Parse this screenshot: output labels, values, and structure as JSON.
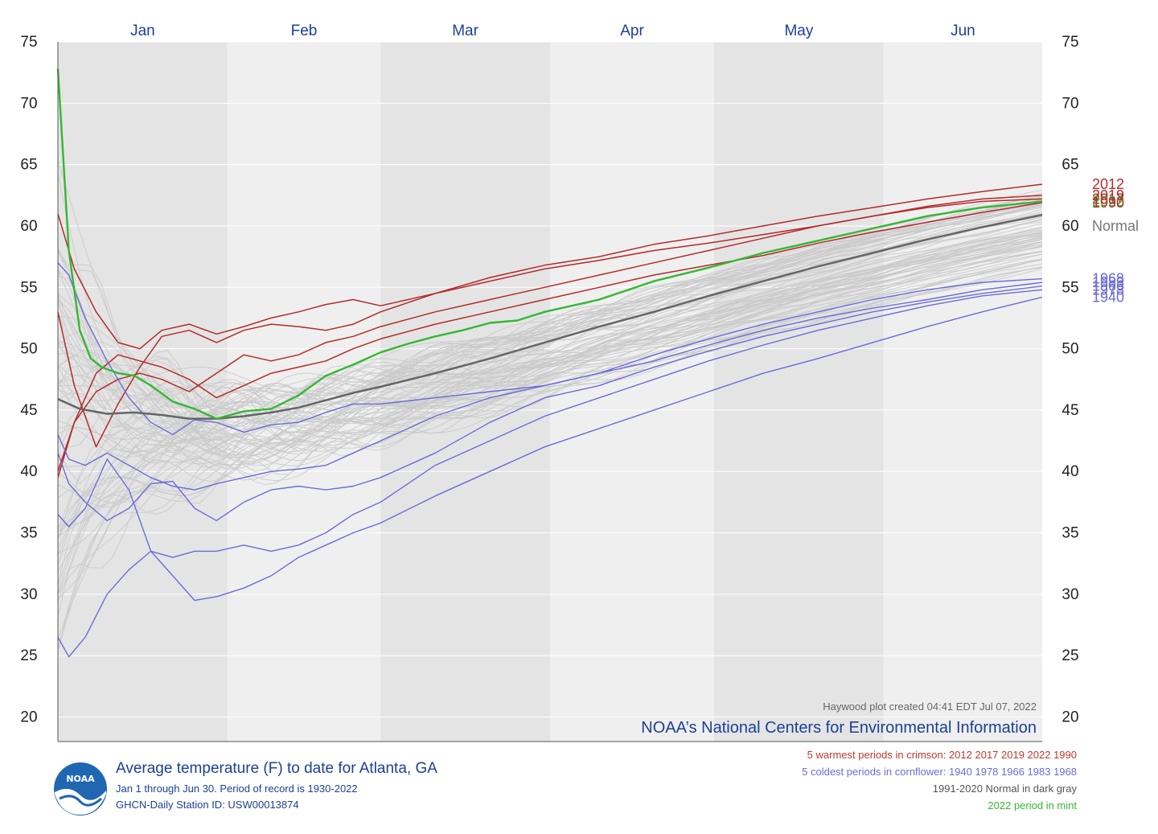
{
  "chart_data": {
    "type": "line",
    "months": [
      "Jan",
      "Feb",
      "Mar",
      "Apr",
      "May",
      "Jun"
    ],
    "x_domain_days": [
      1,
      181
    ],
    "ylim": [
      18,
      75
    ],
    "yticks": [
      20,
      25,
      30,
      35,
      40,
      45,
      50,
      55,
      60,
      65,
      70,
      75
    ],
    "grid": true,
    "credit": "Haywood plot created 04:41 EDT Jul 07, 2022",
    "source": "NOAA’s National Centers for Environmental Information",
    "title": "Average temperature (F) to date for Atlanta, GA",
    "subtitle": "Jan 1 through Jun 30.  Period of record is 1930-2022",
    "station": "GHCN-Daily Station ID: USW00013874",
    "legend_lines": [
      {
        "text": "5 warmest periods in crimson: 2012 2017 2019 2022 1990",
        "color": "#c0392b"
      },
      {
        "text": "5 coldest periods in cornflower: 1940 1978 1966 1983 1968",
        "color": "#6b6bdc"
      },
      {
        "text": "1991-2020 Normal in dark gray",
        "color": "#555555"
      },
      {
        "text": "2022 period in mint",
        "color": "#33b833"
      }
    ],
    "end_labels": [
      {
        "text": "2012",
        "y": 63.4,
        "color": "#b52a2a"
      },
      {
        "text": "2019",
        "y": 62.5,
        "color": "#b52a2a"
      },
      {
        "text": "2017",
        "y": 62.2,
        "color": "#b52a2a"
      },
      {
        "text": "2022",
        "y": 62.0,
        "color": "#33b833"
      },
      {
        "text": "1990",
        "y": 61.9,
        "color": "#b52a2a"
      },
      {
        "text": "Normal",
        "y": 60.0,
        "color": "#777777"
      },
      {
        "text": "1968",
        "y": 55.7,
        "color": "#6b6bdc"
      },
      {
        "text": "1983",
        "y": 55.4,
        "color": "#6b6bdc"
      },
      {
        "text": "1966",
        "y": 55.1,
        "color": "#6b6bdc"
      },
      {
        "text": "1978",
        "y": 54.8,
        "color": "#6b6bdc"
      },
      {
        "text": "1940",
        "y": 54.2,
        "color": "#6b6bdc"
      }
    ],
    "series": [
      {
        "name": "Normal",
        "color": "#666666",
        "width": 2.5,
        "x": [
          1,
          5,
          10,
          15,
          20,
          25,
          30,
          35,
          40,
          45,
          50,
          55,
          60,
          70,
          80,
          90,
          100,
          110,
          120,
          130,
          140,
          150,
          160,
          170,
          181
        ],
        "y": [
          45.9,
          45.1,
          44.7,
          44.8,
          44.6,
          44.3,
          44.3,
          44.5,
          44.8,
          45.2,
          45.8,
          46.4,
          46.9,
          48.0,
          49.2,
          50.5,
          51.8,
          53.0,
          54.3,
          55.5,
          56.7,
          57.8,
          58.9,
          59.9,
          60.9
        ]
      },
      {
        "name": "2022",
        "color": "#33b833",
        "width": 2.4,
        "x": [
          1,
          3,
          5,
          7,
          9,
          12,
          15,
          18,
          22,
          26,
          30,
          35,
          40,
          45,
          50,
          55,
          60,
          65,
          70,
          75,
          80,
          85,
          90,
          95,
          100,
          110,
          120,
          130,
          140,
          150,
          160,
          170,
          181
        ],
        "y": [
          72.8,
          58.0,
          51.5,
          49.2,
          48.5,
          48.0,
          47.8,
          47.0,
          45.7,
          45.1,
          44.3,
          44.9,
          45.1,
          46.2,
          47.8,
          48.7,
          49.7,
          50.4,
          51.0,
          51.5,
          52.1,
          52.3,
          53.0,
          53.5,
          54.0,
          55.5,
          56.6,
          57.8,
          58.8,
          59.8,
          60.8,
          61.5,
          62.0
        ]
      },
      {
        "name": "2012",
        "color": "#b52a2a",
        "width": 1.5,
        "x": [
          1,
          4,
          8,
          12,
          16,
          20,
          25,
          30,
          35,
          40,
          45,
          50,
          55,
          60,
          70,
          80,
          90,
          100,
          110,
          120,
          130,
          140,
          150,
          160,
          170,
          181
        ],
        "y": [
          61.0,
          56.5,
          53.0,
          50.5,
          50.0,
          51.5,
          52.0,
          51.2,
          51.8,
          52.5,
          53.0,
          53.6,
          54.0,
          53.5,
          54.5,
          55.8,
          56.8,
          57.5,
          58.5,
          59.2,
          60.0,
          60.8,
          61.5,
          62.2,
          62.8,
          63.4
        ]
      },
      {
        "name": "2017",
        "color": "#b52a2a",
        "width": 1.5,
        "x": [
          1,
          4,
          8,
          12,
          16,
          20,
          25,
          30,
          35,
          40,
          45,
          50,
          55,
          60,
          70,
          80,
          90,
          100,
          110,
          120,
          130,
          140,
          150,
          160,
          170,
          181
        ],
        "y": [
          53.0,
          47.0,
          42.0,
          45.5,
          48.5,
          51.0,
          51.5,
          50.5,
          51.5,
          52.0,
          51.8,
          51.5,
          52.0,
          53.0,
          54.5,
          55.5,
          56.5,
          57.2,
          58.0,
          58.6,
          59.3,
          60.0,
          60.8,
          61.5,
          62.0,
          62.2
        ]
      },
      {
        "name": "2019",
        "color": "#b52a2a",
        "width": 1.5,
        "x": [
          1,
          4,
          8,
          12,
          16,
          20,
          25,
          30,
          35,
          40,
          45,
          50,
          55,
          60,
          70,
          80,
          90,
          100,
          110,
          120,
          130,
          140,
          150,
          160,
          170,
          181
        ],
        "y": [
          39.5,
          44.0,
          46.5,
          47.5,
          48.0,
          47.5,
          46.5,
          48.0,
          49.5,
          49.0,
          49.5,
          50.5,
          51.0,
          51.8,
          53.0,
          54.0,
          55.0,
          56.0,
          57.0,
          58.0,
          59.0,
          60.0,
          60.8,
          61.6,
          62.2,
          62.5
        ]
      },
      {
        "name": "1990",
        "color": "#b52a2a",
        "width": 1.5,
        "x": [
          1,
          4,
          8,
          12,
          16,
          20,
          25,
          30,
          35,
          40,
          45,
          50,
          55,
          60,
          70,
          80,
          90,
          100,
          110,
          120,
          130,
          140,
          150,
          160,
          170,
          181
        ],
        "y": [
          40.0,
          44.0,
          48.0,
          49.5,
          49.0,
          48.5,
          47.5,
          46.0,
          47.0,
          48.0,
          48.5,
          49.0,
          50.0,
          50.8,
          52.0,
          53.0,
          54.0,
          55.0,
          56.0,
          56.8,
          57.6,
          58.6,
          59.5,
          60.3,
          61.1,
          61.9
        ]
      },
      {
        "name": "1940",
        "color": "#6b6bdc",
        "width": 1.4,
        "x": [
          1,
          3,
          6,
          10,
          14,
          18,
          22,
          26,
          30,
          35,
          40,
          45,
          50,
          55,
          60,
          70,
          80,
          90,
          100,
          110,
          120,
          130,
          140,
          150,
          160,
          170,
          181
        ],
        "y": [
          26.5,
          24.9,
          26.5,
          30.0,
          32.0,
          33.5,
          31.5,
          29.5,
          29.8,
          30.5,
          31.5,
          33.0,
          34.0,
          35.0,
          35.8,
          38.0,
          40.0,
          42.0,
          43.5,
          45.0,
          46.5,
          48.0,
          49.2,
          50.5,
          51.8,
          53.0,
          54.2
        ]
      },
      {
        "name": "1978",
        "color": "#6b6bdc",
        "width": 1.4,
        "x": [
          1,
          3,
          6,
          10,
          14,
          18,
          22,
          26,
          30,
          35,
          40,
          45,
          50,
          55,
          60,
          70,
          80,
          90,
          100,
          110,
          120,
          130,
          140,
          150,
          160,
          170,
          181
        ],
        "y": [
          36.5,
          35.5,
          37.0,
          41.0,
          38.5,
          33.5,
          33.0,
          33.5,
          33.5,
          34.0,
          33.5,
          34.0,
          35.0,
          36.5,
          37.5,
          40.5,
          42.5,
          44.5,
          46.0,
          47.5,
          49.0,
          50.3,
          51.5,
          52.5,
          53.5,
          54.3,
          54.8
        ]
      },
      {
        "name": "1966",
        "color": "#6b6bdc",
        "width": 1.4,
        "x": [
          1,
          3,
          6,
          10,
          14,
          18,
          22,
          26,
          30,
          35,
          40,
          45,
          50,
          55,
          60,
          70,
          80,
          90,
          100,
          110,
          120,
          130,
          140,
          150,
          160,
          170,
          181
        ],
        "y": [
          41.5,
          39.0,
          37.5,
          36.0,
          37.0,
          39.0,
          39.2,
          37.0,
          36.0,
          37.5,
          38.5,
          38.8,
          38.5,
          38.8,
          39.5,
          41.5,
          44.0,
          46.0,
          47.0,
          48.5,
          49.8,
          51.0,
          52.0,
          53.0,
          53.8,
          54.5,
          55.1
        ]
      },
      {
        "name": "1983",
        "color": "#6b6bdc",
        "width": 1.4,
        "x": [
          1,
          3,
          6,
          10,
          14,
          18,
          22,
          26,
          30,
          35,
          40,
          45,
          50,
          55,
          60,
          70,
          80,
          90,
          100,
          110,
          120,
          130,
          140,
          150,
          160,
          170,
          181
        ],
        "y": [
          43.0,
          41.0,
          40.5,
          41.5,
          40.5,
          39.5,
          38.8,
          38.5,
          39.0,
          39.5,
          40.0,
          40.2,
          40.5,
          41.5,
          42.5,
          44.5,
          46.0,
          47.0,
          48.0,
          49.0,
          50.3,
          51.5,
          52.5,
          53.3,
          54.0,
          54.8,
          55.4
        ]
      },
      {
        "name": "1968",
        "color": "#6b6bdc",
        "width": 1.4,
        "x": [
          1,
          3,
          6,
          10,
          14,
          18,
          22,
          26,
          30,
          35,
          40,
          45,
          50,
          55,
          60,
          70,
          80,
          90,
          100,
          110,
          120,
          130,
          140,
          150,
          160,
          170,
          181
        ],
        "y": [
          57.0,
          56.0,
          52.5,
          49.0,
          46.0,
          44.0,
          43.0,
          44.2,
          44.0,
          43.2,
          43.8,
          44.0,
          44.8,
          45.5,
          45.5,
          46.0,
          46.5,
          47.0,
          48.0,
          49.5,
          50.8,
          52.0,
          53.0,
          54.0,
          54.8,
          55.4,
          55.7
        ]
      }
    ]
  }
}
